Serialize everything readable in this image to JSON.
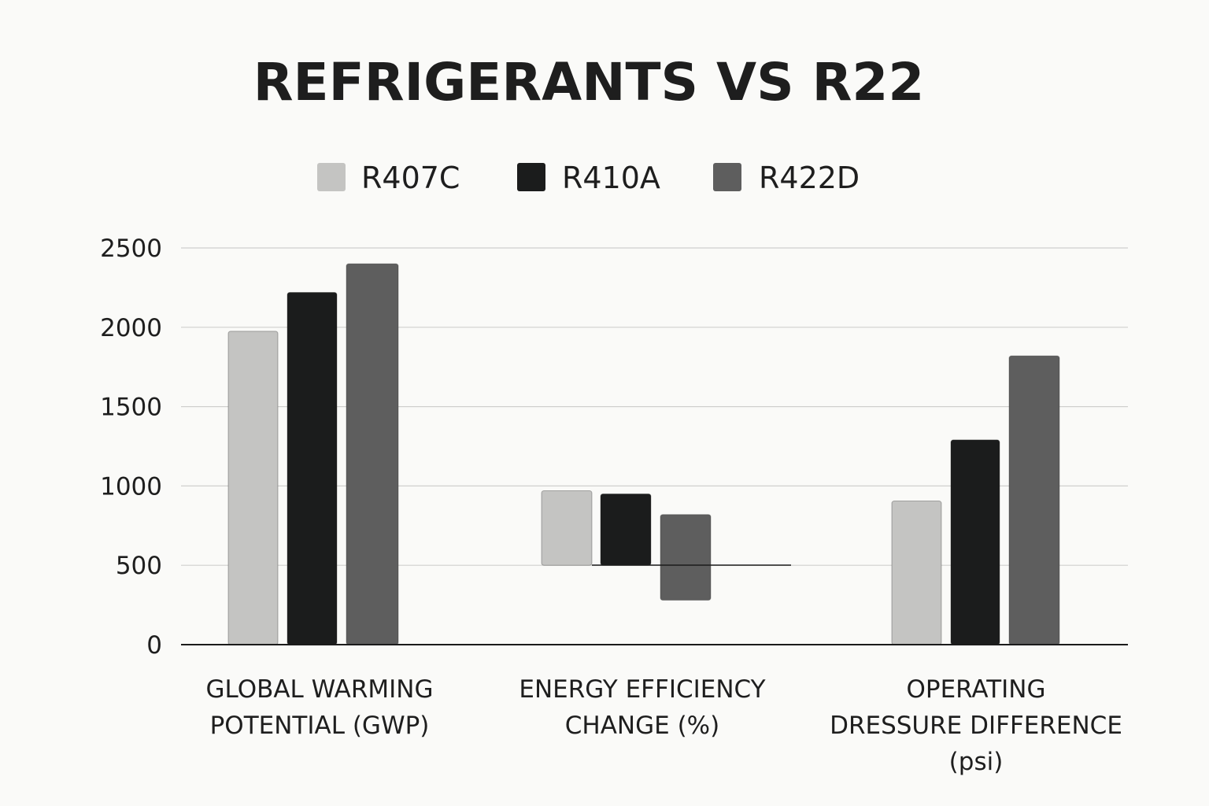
{
  "chart_data": {
    "type": "bar",
    "title": "REFRIGERANTS VS R22",
    "legend_position": "top",
    "categories": [
      [
        "GLOBAL WARMING",
        "POTENTIAL (GWP)"
      ],
      [
        "ENERGY EFFICIENCY",
        "CHANGE (%)"
      ],
      [
        "OPERATING",
        "DRESSURE DIFFERENCE",
        "(psi)"
      ]
    ],
    "series": [
      {
        "name": "R407C",
        "color": "#c4c4c2",
        "values": [
          [
            0,
            1975
          ],
          [
            500,
            970
          ],
          [
            0,
            905
          ]
        ]
      },
      {
        "name": "R410A",
        "color": "#1b1c1c",
        "values": [
          [
            0,
            2220
          ],
          [
            500,
            950
          ],
          [
            0,
            1290
          ]
        ]
      },
      {
        "name": "R422D",
        "color": "#5e5e5e",
        "values": [
          [
            0,
            2400
          ],
          [
            280,
            820
          ],
          [
            0,
            1820
          ]
        ]
      }
    ],
    "y_ticks": [
      0,
      500,
      1000,
      1500,
      2000,
      2500
    ],
    "ylim": [
      0,
      2500
    ],
    "grid": true,
    "xlabel": "",
    "ylabel": ""
  }
}
